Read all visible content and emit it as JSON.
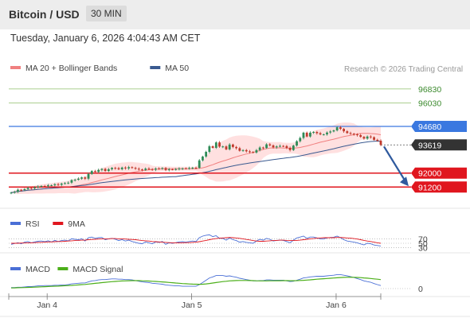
{
  "header": {
    "title": "Bitcoin / USD",
    "timeframe": "30 MIN"
  },
  "datetime": "Tuesday, January 6, 2026 4:04:43 AM CET",
  "credit": "Research © 2026 Trading Central",
  "colors": {
    "up": "#2e8b57",
    "down": "#c0392b",
    "resistance": "#8fbf6a",
    "pivot": "#3a78e0",
    "support": "#e0161e",
    "ma50": "#3a5a90",
    "ma20": "#f08080",
    "band": "#ffd6d6",
    "rsi": "#4a6fd6",
    "macd": "#4a6fd6",
    "macd_signal": "#4caf1a"
  },
  "chart_data": [
    {
      "type": "candlestick",
      "legend": [
        {
          "name": "MA 20 + Bollinger Bands"
        },
        {
          "name": "MA 50"
        }
      ],
      "x_ticks": [
        "Jan 4",
        "Jan 5",
        "Jan 6"
      ],
      "ylim": [
        90300,
        97600
      ],
      "levels": [
        {
          "value": 96830,
          "kind": "resistance",
          "label": "96830"
        },
        {
          "value": 96030,
          "kind": "resistance",
          "label": "96030"
        },
        {
          "value": 94680,
          "kind": "pivot",
          "label": "94680"
        },
        {
          "value": 93619,
          "kind": "last",
          "label": "93619"
        },
        {
          "value": 92000,
          "kind": "support",
          "label": "92000"
        },
        {
          "value": 91200,
          "kind": "support",
          "label": "91200"
        }
      ],
      "projection": {
        "from": 93619,
        "to": 91200
      },
      "close": [
        90880,
        90930,
        91040,
        91020,
        91080,
        91150,
        91120,
        91180,
        91230,
        91260,
        91250,
        91300,
        91300,
        91360,
        91330,
        91400,
        91420,
        91450,
        91600,
        91620,
        91680,
        91750,
        91680,
        91950,
        92120,
        92070,
        92180,
        92240,
        92120,
        92220,
        92300,
        92280,
        92220,
        92320,
        92270,
        92340,
        92300,
        92250,
        92210,
        92180,
        92260,
        92230,
        92200,
        92260,
        92250,
        92290,
        92180,
        92220,
        92210,
        92230,
        92260,
        92270,
        92260,
        92290,
        92310,
        92300,
        92730,
        92950,
        93220,
        93540,
        93450,
        93760,
        93520,
        93530,
        93360,
        93640,
        93500,
        93430,
        93280,
        93320,
        93250,
        93210,
        93180,
        93320,
        93470,
        93440,
        93650,
        93590,
        93480,
        93530,
        93560,
        93550,
        93450,
        93320,
        93580,
        93830,
        94020,
        94320,
        94100,
        94320,
        94360,
        94290,
        94220,
        94220,
        94330,
        94390,
        94450,
        94630,
        94540,
        94400,
        94300,
        94260,
        94220,
        94180,
        94080,
        93980,
        94100,
        94060,
        93910,
        93860,
        93619
      ]
    },
    {
      "type": "line",
      "legend": [
        {
          "name": "RSI"
        },
        {
          "name": "9MA"
        }
      ],
      "y_ticks": [
        70,
        50,
        30
      ],
      "ylim": [
        0,
        100
      ],
      "series": [
        {
          "name": "RSI",
          "values": [
            45,
            49,
            52,
            48,
            55,
            58,
            52,
            56,
            59,
            60,
            57,
            61,
            56,
            63,
            58,
            62,
            64,
            61,
            70,
            68,
            66,
            70,
            60,
            75,
            78,
            72,
            75,
            76,
            66,
            70,
            72,
            68,
            62,
            66,
            60,
            64,
            58,
            54,
            50,
            48,
            56,
            52,
            48,
            56,
            54,
            58,
            45,
            52,
            50,
            53,
            56,
            57,
            55,
            58,
            60,
            58,
            75,
            82,
            86,
            88,
            80,
            84,
            72,
            72,
            64,
            74,
            66,
            62,
            55,
            58,
            54,
            52,
            50,
            60,
            68,
            64,
            72,
            68,
            60,
            63,
            64,
            63,
            58,
            52,
            64,
            74,
            78,
            82,
            72,
            78,
            78,
            74,
            70,
            70,
            74,
            76,
            77,
            82,
            75,
            66,
            60,
            58,
            55,
            52,
            47,
            43,
            50,
            48,
            42,
            40,
            38
          ]
        },
        {
          "name": "9MA",
          "values": [
            50,
            50,
            50,
            51,
            51,
            52,
            52,
            53,
            54,
            54,
            55,
            56,
            56,
            57,
            58,
            58,
            59,
            60,
            61,
            62,
            63,
            64,
            64,
            66,
            67,
            68,
            69,
            70,
            70,
            70,
            71,
            71,
            70,
            70,
            69,
            68,
            67,
            66,
            64,
            62,
            61,
            60,
            58,
            57,
            56,
            55,
            54,
            53,
            52,
            52,
            52,
            52,
            53,
            53,
            54,
            55,
            57,
            60,
            63,
            66,
            69,
            71,
            73,
            74,
            75,
            76,
            75,
            74,
            72,
            70,
            67,
            65,
            62,
            60,
            59,
            59,
            60,
            61,
            62,
            63,
            64,
            64,
            63,
            62,
            62,
            63,
            64,
            66,
            68,
            70,
            71,
            73,
            74,
            75,
            75,
            75,
            75,
            76,
            76,
            75,
            74,
            73,
            71,
            69,
            66,
            63,
            60,
            58,
            55,
            52,
            50
          ]
        }
      ]
    },
    {
      "type": "line",
      "legend": [
        {
          "name": "MACD"
        },
        {
          "name": "MACD Signal"
        }
      ],
      "y_ticks": [
        0
      ],
      "series": [
        {
          "name": "MACD",
          "values": [
            30,
            30,
            40,
            40,
            50,
            60,
            60,
            70,
            80,
            80,
            90,
            90,
            90,
            100,
            100,
            110,
            110,
            120,
            140,
            150,
            160,
            170,
            170,
            200,
            230,
            240,
            260,
            270,
            270,
            280,
            290,
            290,
            280,
            280,
            270,
            270,
            260,
            240,
            220,
            200,
            190,
            180,
            160,
            150,
            140,
            130,
            110,
            100,
            90,
            80,
            80,
            70,
            70,
            70,
            70,
            70,
            120,
            180,
            250,
            320,
            350,
            390,
            390,
            390,
            370,
            380,
            360,
            340,
            310,
            290,
            270,
            250,
            230,
            230,
            240,
            240,
            260,
            260,
            250,
            250,
            250,
            250,
            230,
            210,
            220,
            250,
            280,
            320,
            330,
            350,
            360,
            370,
            370,
            370,
            380,
            390,
            400,
            420,
            420,
            400,
            380,
            360,
            330,
            300,
            270,
            230,
            210,
            190,
            150,
            120,
            90
          ]
        },
        {
          "name": "MACD Signal",
          "values": [
            20,
            22,
            25,
            28,
            31,
            35,
            39,
            43,
            48,
            52,
            57,
            61,
            66,
            71,
            75,
            80,
            85,
            90,
            96,
            102,
            110,
            118,
            125,
            135,
            145,
            156,
            167,
            178,
            188,
            198,
            207,
            215,
            222,
            228,
            232,
            236,
            238,
            238,
            237,
            234,
            230,
            226,
            220,
            214,
            207,
            200,
            192,
            184,
            175,
            167,
            159,
            151,
            145,
            139,
            134,
            130,
            128,
            132,
            140,
            152,
            166,
            181,
            196,
            209,
            220,
            230,
            236,
            241,
            243,
            243,
            242,
            240,
            237,
            234,
            232,
            231,
            232,
            233,
            234,
            235,
            236,
            237,
            237,
            236,
            236,
            238,
            242,
            248,
            255,
            263,
            272,
            280,
            288,
            295,
            302,
            309,
            316,
            324,
            331,
            336,
            339,
            340,
            338,
            334,
            328,
            320,
            311,
            302,
            291,
            280,
            268
          ]
        }
      ]
    }
  ]
}
